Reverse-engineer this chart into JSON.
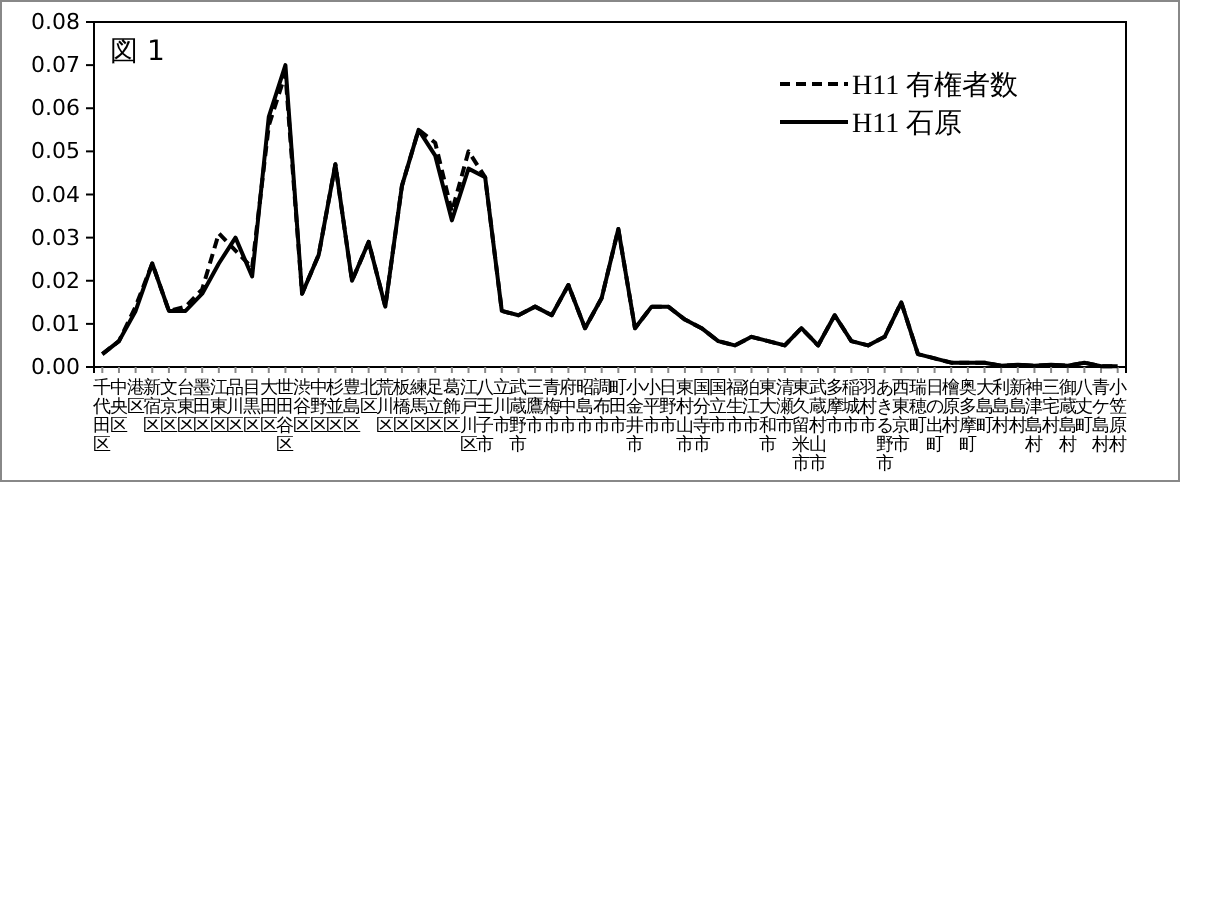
{
  "chart_data": {
    "type": "line",
    "title": "図 1",
    "categories": [
      "千代田区",
      "中央区",
      "港区",
      "新宿区",
      "文京区",
      "台東区",
      "墨田区",
      "江東区",
      "品川区",
      "目黒区",
      "大田区",
      "世田谷区",
      "渋谷区",
      "中野区",
      "杉並区",
      "豊島区",
      "北区",
      "荒川区",
      "板橋区",
      "練馬区",
      "足立区",
      "葛飾区",
      "江戸川区",
      "八王子市",
      "立川市",
      "武蔵野市",
      "三鷹市",
      "青梅市",
      "府中市",
      "昭島市",
      "調布市",
      "町田市",
      "小金井市",
      "小平市",
      "日野市",
      "東村山市",
      "国分寺市",
      "国立市",
      "福生市",
      "狛江市",
      "東大和市",
      "清瀬市",
      "東久留米市",
      "武蔵村山市",
      "多摩市",
      "稲城市",
      "羽村市",
      "あきる野市",
      "西東京市",
      "瑞穂町",
      "日の出町",
      "檜原村",
      "奥多摩町",
      "大島町",
      "利島村",
      "新島村",
      "神津島村",
      "三宅村",
      "御蔵島村",
      "八丈町",
      "青ケ島村",
      "小笠原村"
    ],
    "series": [
      {
        "name": "H11 有権者数",
        "color": "#000000",
        "line_style": "dashed",
        "values": [
          0.003,
          0.006,
          0.014,
          0.024,
          0.013,
          0.014,
          0.018,
          0.031,
          0.027,
          0.023,
          0.056,
          0.068,
          0.017,
          0.026,
          0.047,
          0.02,
          0.029,
          0.014,
          0.042,
          0.055,
          0.052,
          0.036,
          0.05,
          0.044,
          0.013,
          0.012,
          0.014,
          0.012,
          0.019,
          0.009,
          0.016,
          0.032,
          0.009,
          0.014,
          0.014,
          0.011,
          0.009,
          0.006,
          0.005,
          0.007,
          0.006,
          0.005,
          0.009,
          0.005,
          0.012,
          0.006,
          0.005,
          0.007,
          0.015,
          0.003,
          0.002,
          0.001,
          0.001,
          0.001,
          0.0003,
          0.0005,
          0.0003,
          0.0005,
          0.0003,
          0.001,
          0.0002,
          0.0002
        ]
      },
      {
        "name": "H11 石原",
        "color": "#000000",
        "line_style": "solid",
        "values": [
          0.003,
          0.006,
          0.013,
          0.024,
          0.013,
          0.013,
          0.017,
          0.024,
          0.03,
          0.021,
          0.058,
          0.07,
          0.017,
          0.026,
          0.047,
          0.02,
          0.029,
          0.014,
          0.042,
          0.055,
          0.049,
          0.034,
          0.046,
          0.044,
          0.013,
          0.012,
          0.014,
          0.012,
          0.019,
          0.009,
          0.016,
          0.032,
          0.009,
          0.014,
          0.014,
          0.011,
          0.009,
          0.006,
          0.005,
          0.007,
          0.006,
          0.005,
          0.009,
          0.005,
          0.012,
          0.006,
          0.005,
          0.007,
          0.015,
          0.003,
          0.002,
          0.001,
          0.001,
          0.001,
          0.0003,
          0.0005,
          0.0003,
          0.0005,
          0.0003,
          0.001,
          0.0002,
          0.0002
        ]
      }
    ],
    "ylim": [
      0,
      0.08
    ],
    "yticks": [
      {
        "value": 0,
        "label": "0.00"
      },
      {
        "value": 0.01,
        "label": "0.01"
      },
      {
        "value": 0.02,
        "label": "0.02"
      },
      {
        "value": 0.03,
        "label": "0.03"
      },
      {
        "value": 0.04,
        "label": "0.04"
      },
      {
        "value": 0.05,
        "label": "0.05"
      },
      {
        "value": 0.06,
        "label": "0.06"
      },
      {
        "value": 0.07,
        "label": "0.07"
      },
      {
        "value": 0.08,
        "label": "0.08"
      }
    ],
    "grid": false,
    "legend": "top right",
    "marker": "none"
  }
}
